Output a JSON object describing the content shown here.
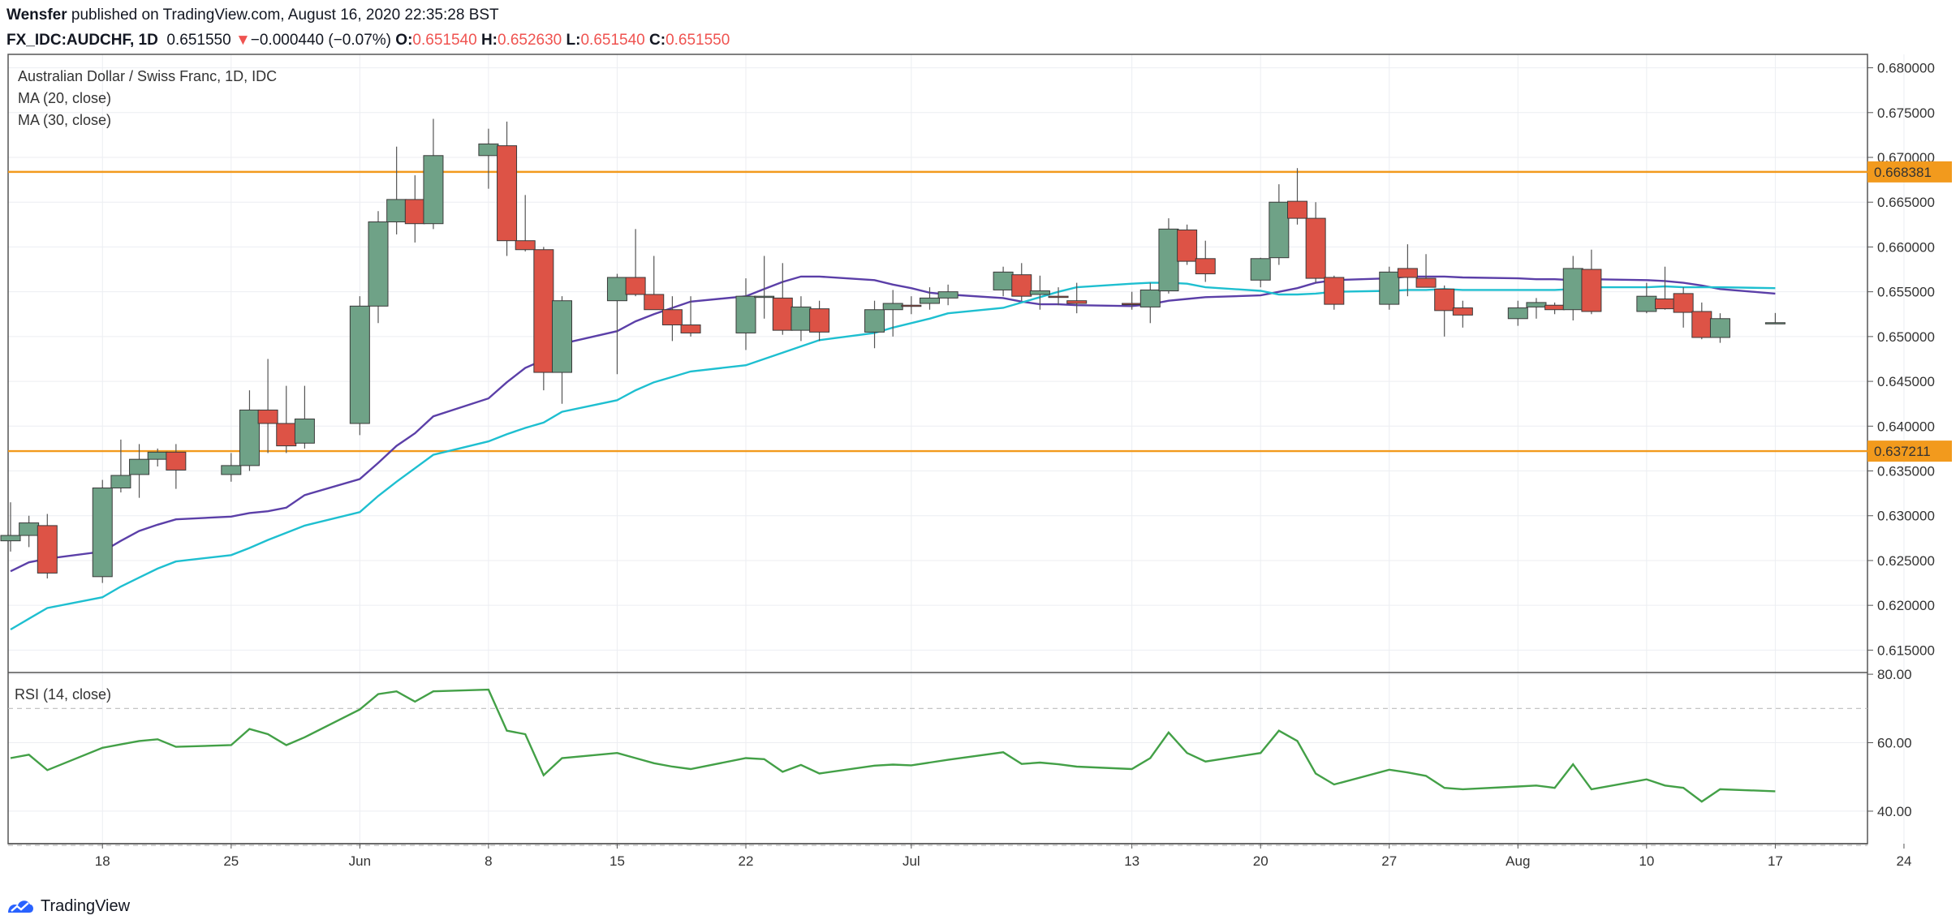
{
  "header": {
    "author": "Wensfer",
    "published_text": " published on TradingView.com, August 16, 2020 22:35:28 BST",
    "symbol": "FX_IDC:AUDCHF, 1D",
    "last": "0.651550",
    "arrow": "▼",
    "change": "−0.000440 (−0.07%)",
    "o_label": "O:",
    "o_value": "0.651540",
    "h_label": "H:",
    "h_value": "0.652630",
    "l_label": "L:",
    "l_value": "0.651540",
    "c_label": "C:",
    "c_value": "0.651550"
  },
  "legend": {
    "title": "Australian Dollar / Swiss Franc, 1D, IDC",
    "ma20": "MA (20, close)",
    "ma30": "MA (30, close)",
    "rsi": "RSI (14, close)"
  },
  "footer": {
    "brand": "TradingView"
  },
  "colors": {
    "up": "#6fa287",
    "down": "#dd5346",
    "ma20": "#5b3fa8",
    "ma30": "#1ebfd0",
    "level": "#f29a1d",
    "rsi": "#43a047"
  },
  "chart_data": [
    {
      "type": "candlestick",
      "title": "Australian Dollar / Swiss Franc, 1D, IDC",
      "x_tick_labels": [
        "18",
        "25",
        "Jun",
        "8",
        "15",
        "22",
        "Jul",
        "13",
        "20",
        "27",
        "Aug",
        "10",
        "17",
        "24"
      ],
      "y_tick_labels": [
        "0.680000",
        "0.675000",
        "0.670000",
        "0.665000",
        "0.660000",
        "0.655000",
        "0.650000",
        "0.645000",
        "0.640000",
        "0.635000",
        "0.630000",
        "0.625000",
        "0.620000",
        "0.615000"
      ],
      "ylim": [
        0.6125,
        0.6815
      ],
      "grid": true,
      "horizontal_levels": [
        {
          "label": "0.668381",
          "value": 0.668381
        },
        {
          "label": "0.637211",
          "value": 0.637211
        }
      ],
      "candles": [
        {
          "date": "2020-05-13",
          "o": 0.6272,
          "h": 0.6315,
          "l": 0.626,
          "c": 0.6278
        },
        {
          "date": "2020-05-14",
          "o": 0.6278,
          "h": 0.63,
          "l": 0.6265,
          "c": 0.6292
        },
        {
          "date": "2020-05-15",
          "o": 0.6289,
          "h": 0.6302,
          "l": 0.623,
          "c": 0.6236
        },
        {
          "date": "2020-05-18",
          "o": 0.6232,
          "h": 0.634,
          "l": 0.6225,
          "c": 0.6331
        },
        {
          "date": "2020-05-19",
          "o": 0.6331,
          "h": 0.6385,
          "l": 0.6326,
          "c": 0.6345
        },
        {
          "date": "2020-05-20",
          "o": 0.6346,
          "h": 0.638,
          "l": 0.632,
          "c": 0.6363
        },
        {
          "date": "2020-05-21",
          "o": 0.6363,
          "h": 0.6375,
          "l": 0.6355,
          "c": 0.6371
        },
        {
          "date": "2020-05-22",
          "o": 0.6371,
          "h": 0.638,
          "l": 0.633,
          "c": 0.6351
        },
        {
          "date": "2020-05-25",
          "o": 0.6346,
          "h": 0.637,
          "l": 0.6338,
          "c": 0.6356
        },
        {
          "date": "2020-05-26",
          "o": 0.6356,
          "h": 0.644,
          "l": 0.635,
          "c": 0.6418
        },
        {
          "date": "2020-05-27",
          "o": 0.6418,
          "h": 0.6475,
          "l": 0.637,
          "c": 0.6403
        },
        {
          "date": "2020-05-28",
          "o": 0.6403,
          "h": 0.6445,
          "l": 0.637,
          "c": 0.6378
        },
        {
          "date": "2020-05-29",
          "o": 0.6381,
          "h": 0.6445,
          "l": 0.6375,
          "c": 0.6408
        },
        {
          "date": "2020-06-01",
          "o": 0.6403,
          "h": 0.6545,
          "l": 0.639,
          "c": 0.6534
        },
        {
          "date": "2020-06-02",
          "o": 0.6534,
          "h": 0.664,
          "l": 0.6515,
          "c": 0.6628
        },
        {
          "date": "2020-06-03",
          "o": 0.6628,
          "h": 0.6712,
          "l": 0.6614,
          "c": 0.6653
        },
        {
          "date": "2020-06-04",
          "o": 0.6653,
          "h": 0.668,
          "l": 0.6605,
          "c": 0.6626
        },
        {
          "date": "2020-06-05",
          "o": 0.6626,
          "h": 0.6743,
          "l": 0.662,
          "c": 0.6702
        },
        {
          "date": "2020-06-08",
          "o": 0.6702,
          "h": 0.6732,
          "l": 0.6665,
          "c": 0.6715
        },
        {
          "date": "2020-06-09",
          "o": 0.6713,
          "h": 0.674,
          "l": 0.659,
          "c": 0.6607
        },
        {
          "date": "2020-06-10",
          "o": 0.6607,
          "h": 0.6658,
          "l": 0.6595,
          "c": 0.6597
        },
        {
          "date": "2020-06-11",
          "o": 0.6597,
          "h": 0.66,
          "l": 0.644,
          "c": 0.646
        },
        {
          "date": "2020-06-12",
          "o": 0.646,
          "h": 0.6545,
          "l": 0.6425,
          "c": 0.654
        },
        {
          "date": "2020-06-15",
          "o": 0.654,
          "h": 0.657,
          "l": 0.6458,
          "c": 0.6566
        },
        {
          "date": "2020-06-16",
          "o": 0.6566,
          "h": 0.662,
          "l": 0.6545,
          "c": 0.6547
        },
        {
          "date": "2020-06-17",
          "o": 0.6547,
          "h": 0.659,
          "l": 0.653,
          "c": 0.653
        },
        {
          "date": "2020-06-18",
          "o": 0.653,
          "h": 0.6545,
          "l": 0.6495,
          "c": 0.6513
        },
        {
          "date": "2020-06-19",
          "o": 0.6513,
          "h": 0.6545,
          "l": 0.65,
          "c": 0.6504
        },
        {
          "date": "2020-06-22",
          "o": 0.6504,
          "h": 0.6565,
          "l": 0.6485,
          "c": 0.6545
        },
        {
          "date": "2020-06-23",
          "o": 0.6545,
          "h": 0.659,
          "l": 0.652,
          "c": 0.6545
        },
        {
          "date": "2020-06-24",
          "o": 0.6543,
          "h": 0.6582,
          "l": 0.6502,
          "c": 0.6507
        },
        {
          "date": "2020-06-25",
          "o": 0.6507,
          "h": 0.6545,
          "l": 0.6495,
          "c": 0.6533
        },
        {
          "date": "2020-06-26",
          "o": 0.6531,
          "h": 0.654,
          "l": 0.6495,
          "c": 0.6505
        },
        {
          "date": "2020-06-29",
          "o": 0.6505,
          "h": 0.654,
          "l": 0.6487,
          "c": 0.653
        },
        {
          "date": "2020-06-30",
          "o": 0.653,
          "h": 0.6552,
          "l": 0.65,
          "c": 0.6537
        },
        {
          "date": "2020-07-01",
          "o": 0.6535,
          "h": 0.6545,
          "l": 0.6525,
          "c": 0.6534
        },
        {
          "date": "2020-07-02",
          "o": 0.6537,
          "h": 0.6555,
          "l": 0.653,
          "c": 0.6543
        },
        {
          "date": "2020-07-03",
          "o": 0.6543,
          "h": 0.6558,
          "l": 0.6535,
          "c": 0.655
        },
        {
          "date": "2020-07-06",
          "o": 0.6552,
          "h": 0.6578,
          "l": 0.6545,
          "c": 0.6572
        },
        {
          "date": "2020-07-07",
          "o": 0.6569,
          "h": 0.6582,
          "l": 0.654,
          "c": 0.6545
        },
        {
          "date": "2020-07-08",
          "o": 0.6547,
          "h": 0.6568,
          "l": 0.653,
          "c": 0.6551
        },
        {
          "date": "2020-07-09",
          "o": 0.6545,
          "h": 0.6555,
          "l": 0.6535,
          "c": 0.6544
        },
        {
          "date": "2020-07-10",
          "o": 0.654,
          "h": 0.656,
          "l": 0.6526,
          "c": 0.6537
        },
        {
          "date": "2020-07-13",
          "o": 0.6537,
          "h": 0.655,
          "l": 0.653,
          "c": 0.6536
        },
        {
          "date": "2020-07-14",
          "o": 0.6533,
          "h": 0.656,
          "l": 0.6515,
          "c": 0.6552
        },
        {
          "date": "2020-07-15",
          "o": 0.6551,
          "h": 0.6632,
          "l": 0.6548,
          "c": 0.662
        },
        {
          "date": "2020-07-16",
          "o": 0.6619,
          "h": 0.6625,
          "l": 0.658,
          "c": 0.6584
        },
        {
          "date": "2020-07-17",
          "o": 0.6587,
          "h": 0.6607,
          "l": 0.6561,
          "c": 0.657
        },
        {
          "date": "2020-07-20",
          "o": 0.6563,
          "h": 0.6588,
          "l": 0.6555,
          "c": 0.6587
        },
        {
          "date": "2020-07-21",
          "o": 0.6588,
          "h": 0.667,
          "l": 0.658,
          "c": 0.665
        },
        {
          "date": "2020-07-22",
          "o": 0.6651,
          "h": 0.6688,
          "l": 0.6625,
          "c": 0.6632
        },
        {
          "date": "2020-07-23",
          "o": 0.6632,
          "h": 0.665,
          "l": 0.656,
          "c": 0.6565
        },
        {
          "date": "2020-07-24",
          "o": 0.6566,
          "h": 0.6568,
          "l": 0.653,
          "c": 0.6536
        },
        {
          "date": "2020-07-27",
          "o": 0.6536,
          "h": 0.6578,
          "l": 0.653,
          "c": 0.6572
        },
        {
          "date": "2020-07-28",
          "o": 0.6576,
          "h": 0.6603,
          "l": 0.6545,
          "c": 0.6566
        },
        {
          "date": "2020-07-29",
          "o": 0.6565,
          "h": 0.6592,
          "l": 0.6555,
          "c": 0.6555
        },
        {
          "date": "2020-07-30",
          "o": 0.6553,
          "h": 0.6557,
          "l": 0.65,
          "c": 0.6529
        },
        {
          "date": "2020-07-31",
          "o": 0.6532,
          "h": 0.654,
          "l": 0.651,
          "c": 0.6524
        },
        {
          "date": "2020-08-03",
          "o": 0.652,
          "h": 0.654,
          "l": 0.6512,
          "c": 0.6532
        },
        {
          "date": "2020-08-04",
          "o": 0.6533,
          "h": 0.6543,
          "l": 0.652,
          "c": 0.6538
        },
        {
          "date": "2020-08-05",
          "o": 0.6535,
          "h": 0.6538,
          "l": 0.6525,
          "c": 0.653
        },
        {
          "date": "2020-08-06",
          "o": 0.653,
          "h": 0.659,
          "l": 0.6518,
          "c": 0.6576
        },
        {
          "date": "2020-08-07",
          "o": 0.6575,
          "h": 0.6597,
          "l": 0.6525,
          "c": 0.6528
        },
        {
          "date": "2020-08-10",
          "o": 0.6528,
          "h": 0.656,
          "l": 0.6526,
          "c": 0.6545
        },
        {
          "date": "2020-08-11",
          "o": 0.6542,
          "h": 0.6578,
          "l": 0.653,
          "c": 0.6531
        },
        {
          "date": "2020-08-12",
          "o": 0.6548,
          "h": 0.6555,
          "l": 0.651,
          "c": 0.6527
        },
        {
          "date": "2020-08-13",
          "o": 0.6528,
          "h": 0.6538,
          "l": 0.6497,
          "c": 0.6499
        },
        {
          "date": "2020-08-14",
          "o": 0.6499,
          "h": 0.6526,
          "l": 0.6493,
          "c": 0.652
        },
        {
          "date": "2020-08-17",
          "o": 0.65154,
          "h": 0.65263,
          "l": 0.65154,
          "c": 0.65155
        }
      ],
      "series": [
        {
          "name": "MA (20, close)",
          "values": [
            0.6238,
            0.6248,
            0.6252,
            0.626,
            0.6272,
            0.6283,
            0.629,
            0.6296,
            0.6299,
            0.6303,
            0.6305,
            0.6309,
            0.6323,
            0.6341,
            0.6359,
            0.6378,
            0.6392,
            0.6411,
            0.6431,
            0.6449,
            0.6465,
            0.6474,
            0.6492,
            0.6506,
            0.6517,
            0.6525,
            0.6532,
            0.6539,
            0.6545,
            0.6553,
            0.6561,
            0.6567,
            0.6567,
            0.6563,
            0.6558,
            0.6554,
            0.6549,
            0.6547,
            0.6543,
            0.6539,
            0.6536,
            0.6536,
            0.6535,
            0.6534,
            0.6536,
            0.654,
            0.6542,
            0.6544,
            0.6546,
            0.655,
            0.6554,
            0.656,
            0.6563,
            0.6565,
            0.6567,
            0.6567,
            0.6567,
            0.6566,
            0.6565,
            0.6564,
            0.6564,
            0.6563,
            0.6564,
            0.6563,
            0.6562,
            0.656,
            0.6557,
            0.6553,
            0.6548
          ]
        },
        {
          "name": "MA (30, close)",
          "values": [
            0.6173,
            0.6185,
            0.6197,
            0.6209,
            0.6221,
            0.6231,
            0.6241,
            0.6249,
            0.6256,
            0.6264,
            0.6273,
            0.6281,
            0.6289,
            0.6304,
            0.6322,
            0.6338,
            0.6353,
            0.6368,
            0.6383,
            0.6391,
            0.6398,
            0.6404,
            0.6416,
            0.6429,
            0.644,
            0.6449,
            0.6455,
            0.6461,
            0.6468,
            0.6475,
            0.6482,
            0.6489,
            0.6496,
            0.6504,
            0.651,
            0.6515,
            0.652,
            0.6526,
            0.6532,
            0.6538,
            0.6544,
            0.655,
            0.6555,
            0.6559,
            0.656,
            0.656,
            0.6559,
            0.6555,
            0.6551,
            0.6547,
            0.6547,
            0.6548,
            0.655,
            0.6551,
            0.6552,
            0.6552,
            0.6553,
            0.6552,
            0.6552,
            0.6552,
            0.6552,
            0.6553,
            0.6555,
            0.6555,
            0.6556,
            0.6555,
            0.6555,
            0.6555,
            0.6554
          ]
        }
      ]
    },
    {
      "type": "line",
      "title": "RSI (14, close)",
      "y_tick_labels": [
        "80.00",
        "60.00",
        "40.00"
      ],
      "ylim": [
        30.5,
        80.5
      ],
      "bands": [
        70,
        30
      ],
      "series": [
        {
          "name": "RSI (14, close)",
          "values": [
            55.5,
            56.5,
            52.0,
            58.5,
            59.5,
            60.5,
            61.0,
            58.8,
            59.3,
            64.0,
            62.5,
            59.3,
            61.6,
            69.7,
            74.2,
            75.0,
            72.0,
            75.0,
            75.5,
            63.5,
            62.5,
            50.5,
            55.5,
            57.0,
            55.5,
            54.0,
            53.0,
            52.3,
            55.5,
            55.2,
            51.5,
            53.5,
            51.0,
            53.3,
            53.6,
            53.4,
            54.2,
            55.0,
            57.2,
            53.8,
            54.2,
            53.7,
            53.0,
            52.3,
            55.5,
            63.0,
            57.0,
            54.5,
            57.0,
            63.5,
            60.5,
            51.0,
            47.8,
            52.1,
            51.3,
            50.3,
            46.8,
            46.4,
            47.2,
            47.5,
            46.8,
            53.7,
            46.4,
            49.3,
            47.5,
            46.8,
            42.8,
            46.4,
            45.8
          ]
        }
      ]
    }
  ]
}
